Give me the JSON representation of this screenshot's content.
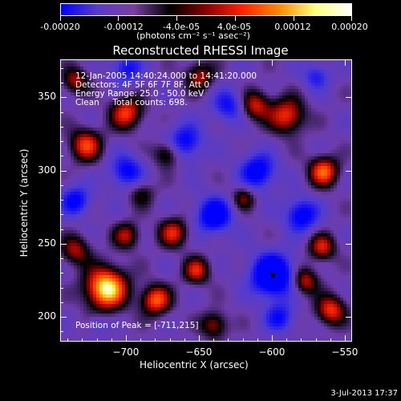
{
  "colorbar": {
    "labels": [
      "-0.00020",
      "-0.00012",
      "-4.0e-05",
      "4.0e-05",
      "0.00012",
      "0.00020"
    ],
    "units": "(photons cm⁻² s⁻¹ asec⁻²)",
    "colors": [
      "#0000ff",
      "#5a3cc8",
      "#7a3fa0",
      "#000000",
      "#8b0000",
      "#ff2200",
      "#ff8800",
      "#ffff80",
      "#ffffff"
    ]
  },
  "chart_data": {
    "type": "heatmap",
    "title": "Reconstructed RHESSI Image",
    "xlabel": "Heliocentric X (arcsec)",
    "ylabel": "Heliocentric Y (arcsec)",
    "xlim": [
      -745,
      -545
    ],
    "ylim": [
      183,
      376
    ],
    "xticks": [
      -700,
      -650,
      -600,
      -550
    ],
    "yticks": [
      200,
      250,
      300,
      350
    ],
    "xtick_labels": [
      "−700",
      "−650",
      "−600",
      "−550"
    ],
    "ytick_labels": [
      "200",
      "250",
      "300",
      "350"
    ],
    "peak": [
      -711,
      215
    ],
    "min_marker": [
      -600,
      229
    ]
  },
  "info": {
    "line1": "12-Jan-2005 14:40:24.000 to 14:41:20.000",
    "line2": "Detectors: 4F 5F 6F 7F 8F, Att 0",
    "line3": "Energy Range: 25.0 - 50.0 keV",
    "line4": "Clean     Total counts: 698.",
    "peak_text": "Position of Peak = [-711,215]"
  },
  "footer": {
    "date": "3-Jul-2013 17:37"
  }
}
